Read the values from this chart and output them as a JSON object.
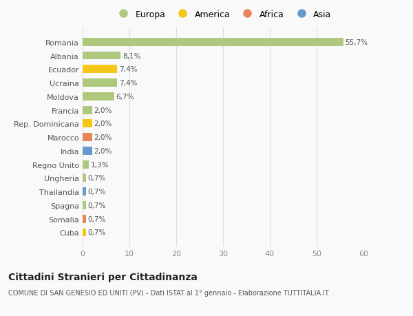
{
  "categories": [
    "Romania",
    "Albania",
    "Ecuador",
    "Ucraina",
    "Moldova",
    "Francia",
    "Rep. Dominicana",
    "Marocco",
    "India",
    "Regno Unito",
    "Ungheria",
    "Thailandia",
    "Spagna",
    "Somalia",
    "Cuba"
  ],
  "values": [
    55.7,
    8.1,
    7.4,
    7.4,
    6.7,
    2.0,
    2.0,
    2.0,
    2.0,
    1.3,
    0.7,
    0.7,
    0.7,
    0.7,
    0.7
  ],
  "labels": [
    "55,7%",
    "8,1%",
    "7,4%",
    "7,4%",
    "6,7%",
    "2,0%",
    "2,0%",
    "2,0%",
    "2,0%",
    "1,3%",
    "0,7%",
    "0,7%",
    "0,7%",
    "0,7%",
    "0,7%"
  ],
  "continents": [
    "Europa",
    "Europa",
    "America",
    "Europa",
    "Europa",
    "Europa",
    "America",
    "Africa",
    "Asia",
    "Europa",
    "Europa",
    "Asia",
    "Europa",
    "Africa",
    "America"
  ],
  "colors": {
    "Europa": "#aec97e",
    "America": "#f5c518",
    "Africa": "#e8845a",
    "Asia": "#6699cc"
  },
  "legend_order": [
    "Europa",
    "America",
    "Africa",
    "Asia"
  ],
  "xlim": [
    0,
    60
  ],
  "xticks": [
    0,
    10,
    20,
    30,
    40,
    50,
    60
  ],
  "title": "Cittadini Stranieri per Cittadinanza",
  "subtitle": "COMUNE DI SAN GENESIO ED UNITI (PV) - Dati ISTAT al 1° gennaio - Elaborazione TUTTITALIA.IT",
  "background_color": "#f9f9f9",
  "grid_color": "#dddddd"
}
